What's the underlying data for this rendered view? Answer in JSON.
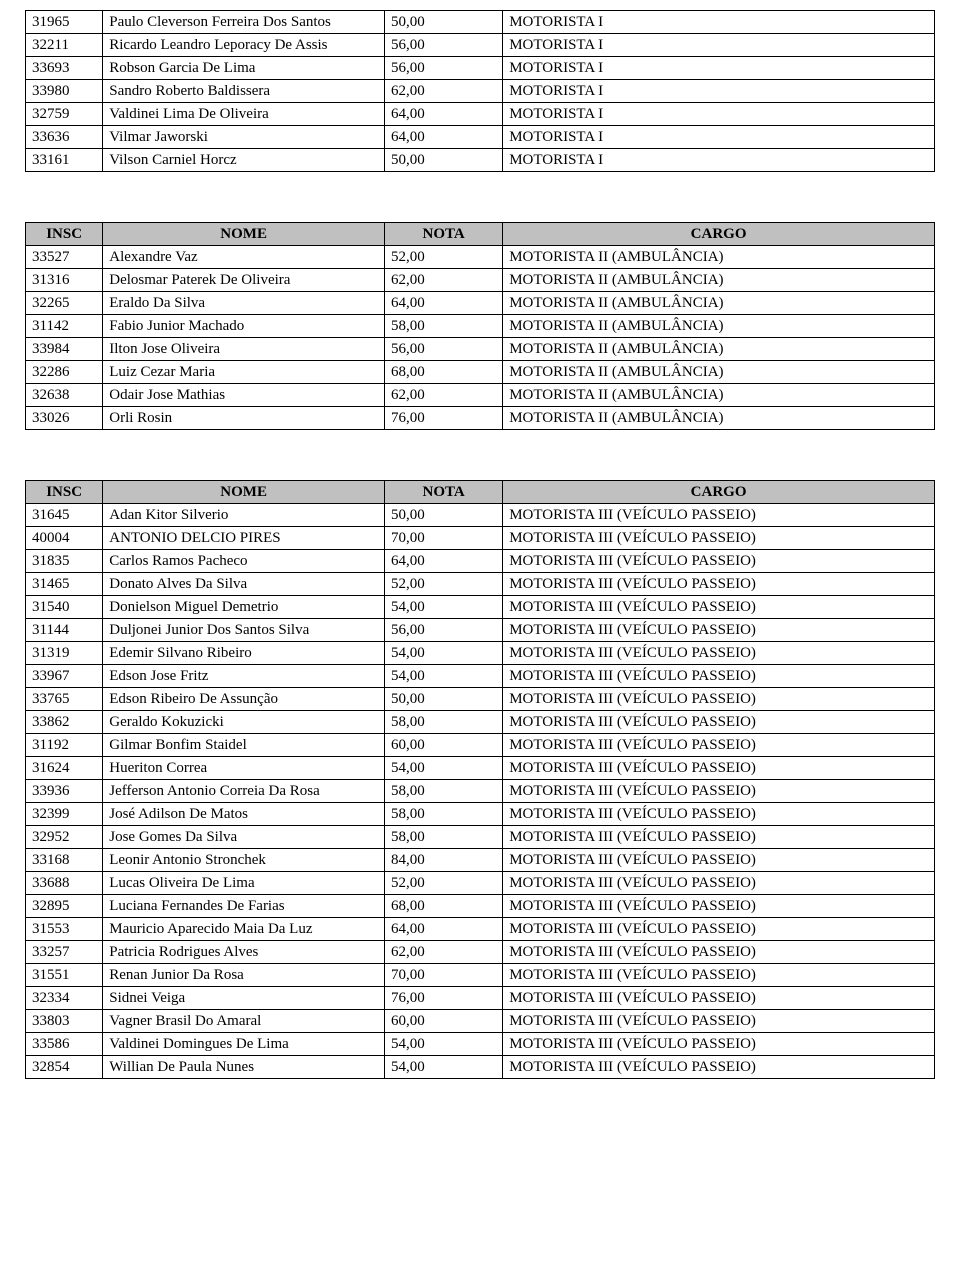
{
  "columns": {
    "insc": "INSC",
    "nome": "NOME",
    "nota": "NOTA",
    "cargo": "CARGO"
  },
  "table1": {
    "rows": [
      {
        "insc": "31965",
        "nome": "Paulo Cleverson Ferreira Dos Santos",
        "nota": "50,00",
        "cargo": "MOTORISTA I"
      },
      {
        "insc": "32211",
        "nome": "Ricardo Leandro Leporacy De Assis",
        "nota": "56,00",
        "cargo": "MOTORISTA I"
      },
      {
        "insc": "33693",
        "nome": "Robson Garcia De Lima",
        "nota": "56,00",
        "cargo": "MOTORISTA I"
      },
      {
        "insc": "33980",
        "nome": "Sandro Roberto Baldissera",
        "nota": "62,00",
        "cargo": "MOTORISTA I"
      },
      {
        "insc": "32759",
        "nome": "Valdinei Lima De Oliveira",
        "nota": "64,00",
        "cargo": "MOTORISTA I"
      },
      {
        "insc": "33636",
        "nome": "Vilmar Jaworski",
        "nota": "64,00",
        "cargo": "MOTORISTA I"
      },
      {
        "insc": "33161",
        "nome": "Vilson Carniel Horcz",
        "nota": "50,00",
        "cargo": "MOTORISTA I"
      }
    ]
  },
  "table2": {
    "rows": [
      {
        "insc": "33527",
        "nome": "Alexandre Vaz",
        "nota": "52,00",
        "cargo": "MOTORISTA II (AMBULÂNCIA)"
      },
      {
        "insc": "31316",
        "nome": "Delosmar Paterek De Oliveira",
        "nota": "62,00",
        "cargo": "MOTORISTA II (AMBULÂNCIA)"
      },
      {
        "insc": "32265",
        "nome": "Eraldo Da Silva",
        "nota": "64,00",
        "cargo": "MOTORISTA II (AMBULÂNCIA)"
      },
      {
        "insc": "31142",
        "nome": "Fabio Junior Machado",
        "nota": "58,00",
        "cargo": "MOTORISTA II (AMBULÂNCIA)"
      },
      {
        "insc": "33984",
        "nome": "Ilton Jose Oliveira",
        "nota": "56,00",
        "cargo": "MOTORISTA II (AMBULÂNCIA)"
      },
      {
        "insc": "32286",
        "nome": "Luiz Cezar Maria",
        "nota": "68,00",
        "cargo": "MOTORISTA II (AMBULÂNCIA)"
      },
      {
        "insc": "32638",
        "nome": "Odair Jose Mathias",
        "nota": "62,00",
        "cargo": "MOTORISTA II (AMBULÂNCIA)"
      },
      {
        "insc": "33026",
        "nome": "Orli Rosin",
        "nota": "76,00",
        "cargo": "MOTORISTA II (AMBULÂNCIA)"
      }
    ]
  },
  "table3": {
    "rows": [
      {
        "insc": "31645",
        "nome": "Adan Kitor Silverio",
        "nota": "50,00",
        "cargo": "MOTORISTA III (VEÍCULO PASSEIO)"
      },
      {
        "insc": "40004",
        "nome": "ANTONIO DELCIO PIRES",
        "nota": "70,00",
        "cargo": "MOTORISTA III (VEÍCULO PASSEIO)"
      },
      {
        "insc": "31835",
        "nome": "Carlos Ramos Pacheco",
        "nota": "64,00",
        "cargo": "MOTORISTA III (VEÍCULO PASSEIO)"
      },
      {
        "insc": "31465",
        "nome": "Donato Alves Da Silva",
        "nota": "52,00",
        "cargo": "MOTORISTA III (VEÍCULO PASSEIO)"
      },
      {
        "insc": "31540",
        "nome": "Donielson Miguel Demetrio",
        "nota": "54,00",
        "cargo": "MOTORISTA III (VEÍCULO PASSEIO)"
      },
      {
        "insc": "31144",
        "nome": "Duljonei Junior Dos Santos Silva",
        "nota": "56,00",
        "cargo": "MOTORISTA III (VEÍCULO PASSEIO)"
      },
      {
        "insc": "31319",
        "nome": "Edemir Silvano Ribeiro",
        "nota": "54,00",
        "cargo": "MOTORISTA III (VEÍCULO PASSEIO)"
      },
      {
        "insc": "33967",
        "nome": "Edson Jose Fritz",
        "nota": "54,00",
        "cargo": "MOTORISTA III (VEÍCULO PASSEIO)"
      },
      {
        "insc": "33765",
        "nome": "Edson Ribeiro De Assunção",
        "nota": "50,00",
        "cargo": "MOTORISTA III (VEÍCULO PASSEIO)"
      },
      {
        "insc": "33862",
        "nome": "Geraldo Kokuzicki",
        "nota": "58,00",
        "cargo": "MOTORISTA III (VEÍCULO PASSEIO)"
      },
      {
        "insc": "31192",
        "nome": "Gilmar Bonfim Staidel",
        "nota": "60,00",
        "cargo": "MOTORISTA III (VEÍCULO PASSEIO)"
      },
      {
        "insc": "31624",
        "nome": "Hueriton Correa",
        "nota": "54,00",
        "cargo": "MOTORISTA III (VEÍCULO PASSEIO)"
      },
      {
        "insc": "33936",
        "nome": "Jefferson Antonio Correia Da Rosa",
        "nota": "58,00",
        "cargo": "MOTORISTA III (VEÍCULO PASSEIO)"
      },
      {
        "insc": "32399",
        "nome": "José Adilson De Matos",
        "nota": "58,00",
        "cargo": "MOTORISTA III (VEÍCULO PASSEIO)"
      },
      {
        "insc": "32952",
        "nome": "Jose Gomes Da Silva",
        "nota": "58,00",
        "cargo": "MOTORISTA III (VEÍCULO PASSEIO)"
      },
      {
        "insc": "33168",
        "nome": "Leonir Antonio Stronchek",
        "nota": "84,00",
        "cargo": "MOTORISTA III (VEÍCULO PASSEIO)"
      },
      {
        "insc": "33688",
        "nome": "Lucas Oliveira De Lima",
        "nota": "52,00",
        "cargo": "MOTORISTA III (VEÍCULO PASSEIO)"
      },
      {
        "insc": "32895",
        "nome": "Luciana Fernandes De Farias",
        "nota": "68,00",
        "cargo": "MOTORISTA III (VEÍCULO PASSEIO)"
      },
      {
        "insc": "31553",
        "nome": "Mauricio Aparecido Maia Da Luz",
        "nota": "64,00",
        "cargo": "MOTORISTA III (VEÍCULO PASSEIO)"
      },
      {
        "insc": "33257",
        "nome": "Patricia Rodrigues Alves",
        "nota": "62,00",
        "cargo": "MOTORISTA III (VEÍCULO PASSEIO)"
      },
      {
        "insc": "31551",
        "nome": "Renan Junior Da Rosa",
        "nota": "70,00",
        "cargo": "MOTORISTA III (VEÍCULO PASSEIO)"
      },
      {
        "insc": "32334",
        "nome": "Sidnei Veiga",
        "nota": "76,00",
        "cargo": "MOTORISTA III (VEÍCULO PASSEIO)"
      },
      {
        "insc": "33803",
        "nome": "Vagner Brasil Do Amaral",
        "nota": "60,00",
        "cargo": "MOTORISTA III (VEÍCULO PASSEIO)"
      },
      {
        "insc": "33586",
        "nome": "Valdinei Domingues De Lima",
        "nota": "54,00",
        "cargo": "MOTORISTA III (VEÍCULO PASSEIO)"
      },
      {
        "insc": "32854",
        "nome": "Willian De Paula Nunes",
        "nota": "54,00",
        "cargo": "MOTORISTA III (VEÍCULO PASSEIO)"
      }
    ]
  }
}
